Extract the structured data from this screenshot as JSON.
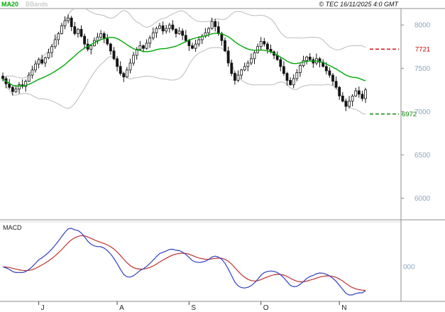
{
  "header": {
    "ma_label": "MA20",
    "bbands_label": "BBands",
    "copyright": "© TEC 16/11/2025 4:0 GMT"
  },
  "levels": {
    "resistance": {
      "value": 7721,
      "color": "#cc0000"
    },
    "support": {
      "value": 6972,
      "color": "#008000"
    }
  },
  "macd_panel": {
    "label": "MACD",
    "zero_label": "000"
  },
  "chart_data": {
    "type": "candlestick",
    "title": "TEC daily price with MA20, Bollinger Bands and MACD",
    "ylim": [
      5750,
      8190
    ],
    "y_ticks": [
      8000,
      7500,
      7000,
      6500,
      6000
    ],
    "x_ticks": [
      {
        "label": "J",
        "index": 11
      },
      {
        "label": "A",
        "index": 35
      },
      {
        "label": "S",
        "index": 57
      },
      {
        "label": "O",
        "index": 79
      },
      {
        "label": "N",
        "index": 103
      }
    ],
    "indicators": {
      "ma_period": 20,
      "bbands": {
        "period": 20,
        "stddev": 2
      },
      "macd": {
        "fast": 12,
        "slow": 26,
        "signal": 9
      }
    },
    "series": {
      "ohlc": [
        [
          7410,
          7450,
          7350,
          7380
        ],
        [
          7380,
          7405,
          7270,
          7320
        ],
        [
          7320,
          7375,
          7260,
          7280
        ],
        [
          7280,
          7295,
          7185,
          7230
        ],
        [
          7230,
          7305,
          7215,
          7260
        ],
        [
          7260,
          7340,
          7205,
          7310
        ],
        [
          7310,
          7370,
          7265,
          7290
        ],
        [
          7290,
          7370,
          7230,
          7350
        ],
        [
          7350,
          7455,
          7340,
          7420
        ],
        [
          7420,
          7530,
          7380,
          7480
        ],
        [
          7480,
          7590,
          7450,
          7550
        ],
        [
          7550,
          7625,
          7500,
          7600
        ],
        [
          7600,
          7655,
          7540,
          7560
        ],
        [
          7560,
          7635,
          7515,
          7620
        ],
        [
          7620,
          7725,
          7605,
          7680
        ],
        [
          7680,
          7780,
          7625,
          7750
        ],
        [
          7750,
          7890,
          7725,
          7830
        ],
        [
          7830,
          7920,
          7770,
          7900
        ],
        [
          7900,
          8025,
          7890,
          7990
        ],
        [
          7990,
          8100,
          7950,
          8050
        ],
        [
          8050,
          8120,
          8020,
          8080
        ],
        [
          8080,
          8105,
          7930,
          7980
        ],
        [
          7980,
          8035,
          7880,
          7900
        ],
        [
          7900,
          7965,
          7855,
          7950
        ],
        [
          7950,
          7995,
          7855,
          7870
        ],
        [
          7870,
          7900,
          7725,
          7780
        ],
        [
          7780,
          7840,
          7695,
          7720
        ],
        [
          7720,
          7780,
          7660,
          7760
        ],
        [
          7760,
          7855,
          7750,
          7820
        ],
        [
          7820,
          7910,
          7780,
          7860
        ],
        [
          7860,
          7940,
          7830,
          7900
        ],
        [
          7900,
          7925,
          7790,
          7840
        ],
        [
          7840,
          7895,
          7760,
          7780
        ],
        [
          7780,
          7795,
          7655,
          7700
        ],
        [
          7700,
          7745,
          7595,
          7610
        ],
        [
          7610,
          7640,
          7465,
          7520
        ],
        [
          7520,
          7580,
          7415,
          7440
        ],
        [
          7440,
          7460,
          7340,
          7400
        ],
        [
          7400,
          7515,
          7390,
          7480
        ],
        [
          7480,
          7610,
          7440,
          7560
        ],
        [
          7560,
          7690,
          7530,
          7650
        ],
        [
          7650,
          7745,
          7600,
          7720
        ],
        [
          7720,
          7815,
          7700,
          7760
        ],
        [
          7760,
          7775,
          7685,
          7730
        ],
        [
          7730,
          7835,
          7715,
          7790
        ],
        [
          7790,
          7880,
          7735,
          7850
        ],
        [
          7850,
          7970,
          7825,
          7910
        ],
        [
          7910,
          7980,
          7850,
          7960
        ],
        [
          7960,
          8025,
          7950,
          7990
        ],
        [
          7990,
          8040,
          7890,
          7930
        ],
        [
          7930,
          8000,
          7900,
          7960
        ],
        [
          7960,
          8025,
          7910,
          8000
        ],
        [
          8000,
          8055,
          7930,
          7950
        ],
        [
          7950,
          7965,
          7855,
          7900
        ],
        [
          7900,
          7975,
          7885,
          7930
        ],
        [
          7930,
          7960,
          7825,
          7880
        ],
        [
          7880,
          7940,
          7795,
          7820
        ],
        [
          7820,
          7840,
          7700,
          7760
        ],
        [
          7760,
          7795,
          7720,
          7730
        ],
        [
          7730,
          7830,
          7690,
          7780
        ],
        [
          7780,
          7870,
          7750,
          7830
        ],
        [
          7830,
          7895,
          7780,
          7870
        ],
        [
          7870,
          7965,
          7850,
          7910
        ],
        [
          7910,
          7975,
          7865,
          7960
        ],
        [
          7960,
          8085,
          7945,
          8040
        ],
        [
          8040,
          8070,
          7925,
          7980
        ],
        [
          7980,
          8040,
          7875,
          7900
        ],
        [
          7900,
          7920,
          7760,
          7820
        ],
        [
          7820,
          7855,
          7690,
          7700
        ],
        [
          7700,
          7750,
          7520,
          7560
        ],
        [
          7560,
          7600,
          7410,
          7440
        ],
        [
          7440,
          7465,
          7310,
          7360
        ],
        [
          7360,
          7475,
          7340,
          7420
        ],
        [
          7420,
          7495,
          7375,
          7480
        ],
        [
          7480,
          7565,
          7465,
          7520
        ],
        [
          7520,
          7590,
          7465,
          7560
        ],
        [
          7560,
          7670,
          7535,
          7610
        ],
        [
          7610,
          7700,
          7550,
          7680
        ],
        [
          7680,
          7785,
          7670,
          7750
        ],
        [
          7750,
          7860,
          7710,
          7810
        ],
        [
          7810,
          7850,
          7750,
          7780
        ],
        [
          7780,
          7805,
          7670,
          7720
        ],
        [
          7720,
          7775,
          7670,
          7690
        ],
        [
          7690,
          7705,
          7605,
          7650
        ],
        [
          7650,
          7695,
          7585,
          7600
        ],
        [
          7600,
          7630,
          7465,
          7520
        ],
        [
          7520,
          7580,
          7415,
          7440
        ],
        [
          7440,
          7460,
          7300,
          7360
        ],
        [
          7360,
          7395,
          7300,
          7310
        ],
        [
          7310,
          7430,
          7270,
          7380
        ],
        [
          7380,
          7490,
          7350,
          7450
        ],
        [
          7450,
          7555,
          7400,
          7530
        ],
        [
          7530,
          7645,
          7510,
          7590
        ],
        [
          7590,
          7645,
          7545,
          7630
        ],
        [
          7630,
          7675,
          7585,
          7600
        ],
        [
          7600,
          7630,
          7505,
          7560
        ],
        [
          7560,
          7670,
          7535,
          7610
        ],
        [
          7610,
          7630,
          7510,
          7570
        ],
        [
          7570,
          7605,
          7510,
          7520
        ],
        [
          7520,
          7570,
          7430,
          7470
        ],
        [
          7470,
          7510,
          7390,
          7420
        ],
        [
          7420,
          7445,
          7300,
          7350
        ],
        [
          7350,
          7405,
          7260,
          7280
        ],
        [
          7280,
          7295,
          7135,
          7180
        ],
        [
          7180,
          7225,
          7105,
          7120
        ],
        [
          7120,
          7150,
          7005,
          7060
        ],
        [
          7060,
          7180,
          7035,
          7120
        ],
        [
          7120,
          7200,
          7060,
          7180
        ],
        [
          7180,
          7275,
          7170,
          7240
        ],
        [
          7240,
          7290,
          7160,
          7200
        ],
        [
          7200,
          7240,
          7120,
          7150
        ],
        [
          7150,
          7275,
          7100,
          7250
        ]
      ]
    },
    "colors": {
      "candle": "#141414",
      "ma": "#00a800",
      "bbands": "#bbbbbb",
      "macd_line": "#2f3fbf",
      "macd_signal": "#c03030",
      "axis_text": "#8ca6c0",
      "month_text": "#222222",
      "border": "#8c8c8c"
    }
  }
}
